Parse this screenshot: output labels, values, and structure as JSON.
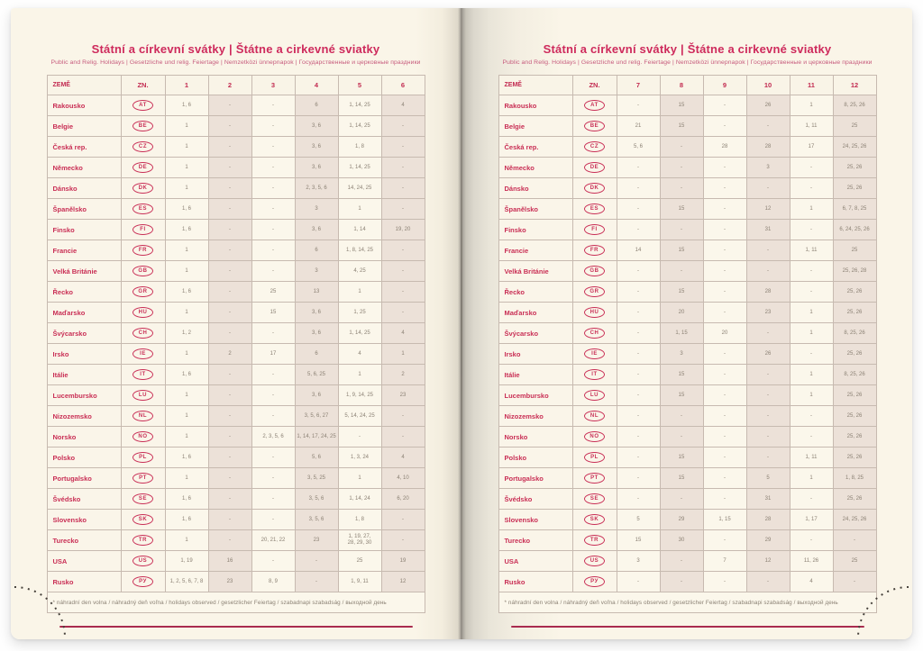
{
  "colors": {
    "accent_magenta": "#ce2a5c",
    "country_text": "#c92f55",
    "cell_text": "#8b8174",
    "page_cream": "#faf5e8",
    "shaded_cell": "#ece1d8",
    "rule_line": "#a92b4f"
  },
  "left_page": {
    "title": "Státní a církevní svátky | Štátne a cirkevné sviatky",
    "subtitle": "Public and Relig. Holidays | Gesetzliche und relig. Feiertage | Nemzetközi ünnepnapok | Государственные и церковные праздники",
    "columns": [
      "ZEMĚ",
      "ZN.",
      "1",
      "2",
      "3",
      "4",
      "5",
      "6"
    ],
    "rows": [
      {
        "country": "Rakousko",
        "code": "AT",
        "months": [
          "1, 6",
          "-",
          "-",
          "6",
          "1, 14, 25",
          "4"
        ]
      },
      {
        "country": "Belgie",
        "code": "BE",
        "months": [
          "1",
          "-",
          "-",
          "3, 6",
          "1, 14, 25",
          "-"
        ]
      },
      {
        "country": "Česká rep.",
        "code": "CZ",
        "months": [
          "1",
          "-",
          "-",
          "3, 6",
          "1, 8",
          "-"
        ]
      },
      {
        "country": "Německo",
        "code": "DE",
        "months": [
          "1",
          "-",
          "-",
          "3, 6",
          "1, 14, 25",
          "-"
        ]
      },
      {
        "country": "Dánsko",
        "code": "DK",
        "months": [
          "1",
          "-",
          "-",
          "2, 3, 5, 6",
          "14, 24, 25",
          "-"
        ]
      },
      {
        "country": "Španělsko",
        "code": "ES",
        "months": [
          "1, 6",
          "-",
          "-",
          "3",
          "1",
          "-"
        ]
      },
      {
        "country": "Finsko",
        "code": "FI",
        "months": [
          "1, 6",
          "-",
          "-",
          "3, 6",
          "1, 14",
          "19, 20"
        ]
      },
      {
        "country": "Francie",
        "code": "FR",
        "months": [
          "1",
          "-",
          "-",
          "6",
          "1, 8, 14, 25",
          "-"
        ]
      },
      {
        "country": "Velká Británie",
        "code": "GB",
        "months": [
          "1",
          "-",
          "-",
          "3",
          "4, 25",
          "-"
        ]
      },
      {
        "country": "Řecko",
        "code": "GR",
        "months": [
          "1, 6",
          "-",
          "25",
          "13",
          "1",
          "-"
        ]
      },
      {
        "country": "Maďarsko",
        "code": "HU",
        "months": [
          "1",
          "-",
          "15",
          "3, 6",
          "1, 25",
          "-"
        ]
      },
      {
        "country": "Švýcarsko",
        "code": "CH",
        "months": [
          "1, 2",
          "-",
          "-",
          "3, 6",
          "1, 14, 25",
          "4"
        ]
      },
      {
        "country": "Irsko",
        "code": "IE",
        "months": [
          "1",
          "2",
          "17",
          "6",
          "4",
          "1"
        ]
      },
      {
        "country": "Itálie",
        "code": "IT",
        "months": [
          "1, 6",
          "-",
          "-",
          "5, 6, 25",
          "1",
          "2"
        ]
      },
      {
        "country": "Lucembursko",
        "code": "LU",
        "months": [
          "1",
          "-",
          "-",
          "3, 6",
          "1, 9, 14, 25",
          "23"
        ]
      },
      {
        "country": "Nizozemsko",
        "code": "NL",
        "months": [
          "1",
          "-",
          "-",
          "3, 5, 6, 27",
          "5, 14, 24, 25",
          "-"
        ]
      },
      {
        "country": "Norsko",
        "code": "NO",
        "months": [
          "1",
          "-",
          "2, 3, 5, 6",
          "1, 14, 17, 24, 25",
          "-",
          "-"
        ]
      },
      {
        "country": "Polsko",
        "code": "PL",
        "months": [
          "1, 6",
          "-",
          "-",
          "5, 6",
          "1, 3, 24",
          "4"
        ]
      },
      {
        "country": "Portugalsko",
        "code": "PT",
        "months": [
          "1",
          "-",
          "-",
          "3, 5, 25",
          "1",
          "4, 10"
        ]
      },
      {
        "country": "Švédsko",
        "code": "SE",
        "months": [
          "1, 6",
          "-",
          "-",
          "3, 5, 6",
          "1, 14, 24",
          "6, 20"
        ]
      },
      {
        "country": "Slovensko",
        "code": "SK",
        "months": [
          "1, 6",
          "-",
          "-",
          "3, 5, 6",
          "1, 8",
          "-"
        ]
      },
      {
        "country": "Turecko",
        "code": "TR",
        "months": [
          "1",
          "-",
          "20, 21, 22",
          "23",
          "1, 19, 27,\n28, 29, 30",
          "-"
        ]
      },
      {
        "country": "USA",
        "code": "US",
        "months": [
          "1, 19",
          "16",
          "-",
          "-",
          "25",
          "19"
        ]
      },
      {
        "country": "Rusko",
        "code": "РУ",
        "months": [
          "1, 2, 5, 6, 7, 8",
          "23",
          "8, 9",
          "-",
          "1, 9, 11",
          "12"
        ]
      }
    ],
    "footnote": "* náhradní den volna / náhradný deň voľna / holidays observed / gesetzlicher Feiertag / szabadnapi szabadság / выходной день"
  },
  "right_page": {
    "title": "Státní a církevní svátky | Štátne a cirkevné sviatky",
    "subtitle": "Public and Relig. Holidays | Gesetzliche und relig. Feiertage | Nemzetközi ünnepnapok | Государственные и церковные праздники",
    "columns": [
      "ZEMĚ",
      "ZN.",
      "7",
      "8",
      "9",
      "10",
      "11",
      "12"
    ],
    "rows": [
      {
        "country": "Rakousko",
        "code": "AT",
        "months": [
          "-",
          "15",
          "-",
          "26",
          "1",
          "8, 25, 26"
        ]
      },
      {
        "country": "Belgie",
        "code": "BE",
        "months": [
          "21",
          "15",
          "-",
          "-",
          "1, 11",
          "25"
        ]
      },
      {
        "country": "Česká rep.",
        "code": "CZ",
        "months": [
          "5, 6",
          "-",
          "28",
          "28",
          "17",
          "24, 25, 26"
        ]
      },
      {
        "country": "Německo",
        "code": "DE",
        "months": [
          "-",
          "-",
          "-",
          "3",
          "-",
          "25, 26"
        ]
      },
      {
        "country": "Dánsko",
        "code": "DK",
        "months": [
          "-",
          "-",
          "-",
          "-",
          "-",
          "25, 26"
        ]
      },
      {
        "country": "Španělsko",
        "code": "ES",
        "months": [
          "-",
          "15",
          "-",
          "12",
          "1",
          "6, 7, 8, 25"
        ]
      },
      {
        "country": "Finsko",
        "code": "FI",
        "months": [
          "-",
          "-",
          "-",
          "31",
          "-",
          "6, 24, 25, 26"
        ]
      },
      {
        "country": "Francie",
        "code": "FR",
        "months": [
          "14",
          "15",
          "-",
          "-",
          "1, 11",
          "25"
        ]
      },
      {
        "country": "Velká Británie",
        "code": "GB",
        "months": [
          "-",
          "-",
          "-",
          "-",
          "-",
          "25, 26, 28"
        ]
      },
      {
        "country": "Řecko",
        "code": "GR",
        "months": [
          "-",
          "15",
          "-",
          "28",
          "-",
          "25, 26"
        ]
      },
      {
        "country": "Maďarsko",
        "code": "HU",
        "months": [
          "-",
          "20",
          "-",
          "23",
          "1",
          "25, 26"
        ]
      },
      {
        "country": "Švýcarsko",
        "code": "CH",
        "months": [
          "-",
          "1, 15",
          "20",
          "-",
          "1",
          "8, 25, 26"
        ]
      },
      {
        "country": "Irsko",
        "code": "IE",
        "months": [
          "-",
          "3",
          "-",
          "26",
          "-",
          "25, 26"
        ]
      },
      {
        "country": "Itálie",
        "code": "IT",
        "months": [
          "-",
          "15",
          "-",
          "-",
          "1",
          "8, 25, 26"
        ]
      },
      {
        "country": "Lucembursko",
        "code": "LU",
        "months": [
          "-",
          "15",
          "-",
          "-",
          "1",
          "25, 26"
        ]
      },
      {
        "country": "Nizozemsko",
        "code": "NL",
        "months": [
          "-",
          "-",
          "-",
          "-",
          "-",
          "25, 26"
        ]
      },
      {
        "country": "Norsko",
        "code": "NO",
        "months": [
          "-",
          "-",
          "-",
          "-",
          "-",
          "25, 26"
        ]
      },
      {
        "country": "Polsko",
        "code": "PL",
        "months": [
          "-",
          "15",
          "-",
          "-",
          "1, 11",
          "25, 26"
        ]
      },
      {
        "country": "Portugalsko",
        "code": "PT",
        "months": [
          "-",
          "15",
          "-",
          "5",
          "1",
          "1, 8, 25"
        ]
      },
      {
        "country": "Švédsko",
        "code": "SE",
        "months": [
          "-",
          "-",
          "-",
          "31",
          "-",
          "25, 26"
        ]
      },
      {
        "country": "Slovensko",
        "code": "SK",
        "months": [
          "5",
          "29",
          "1, 15",
          "28",
          "1, 17",
          "24, 25, 26"
        ]
      },
      {
        "country": "Turecko",
        "code": "TR",
        "months": [
          "15",
          "30",
          "-",
          "29",
          "-",
          "-"
        ]
      },
      {
        "country": "USA",
        "code": "US",
        "months": [
          "3",
          "-",
          "7",
          "12",
          "11, 26",
          "25"
        ]
      },
      {
        "country": "Rusko",
        "code": "РУ",
        "months": [
          "-",
          "-",
          "-",
          "-",
          "4",
          "-"
        ]
      }
    ],
    "footnote": "* náhradní den volna / náhradný deň voľna / holidays observed / gesetzlicher Feiertag / szabadnapi szabadság / выходной день"
  }
}
